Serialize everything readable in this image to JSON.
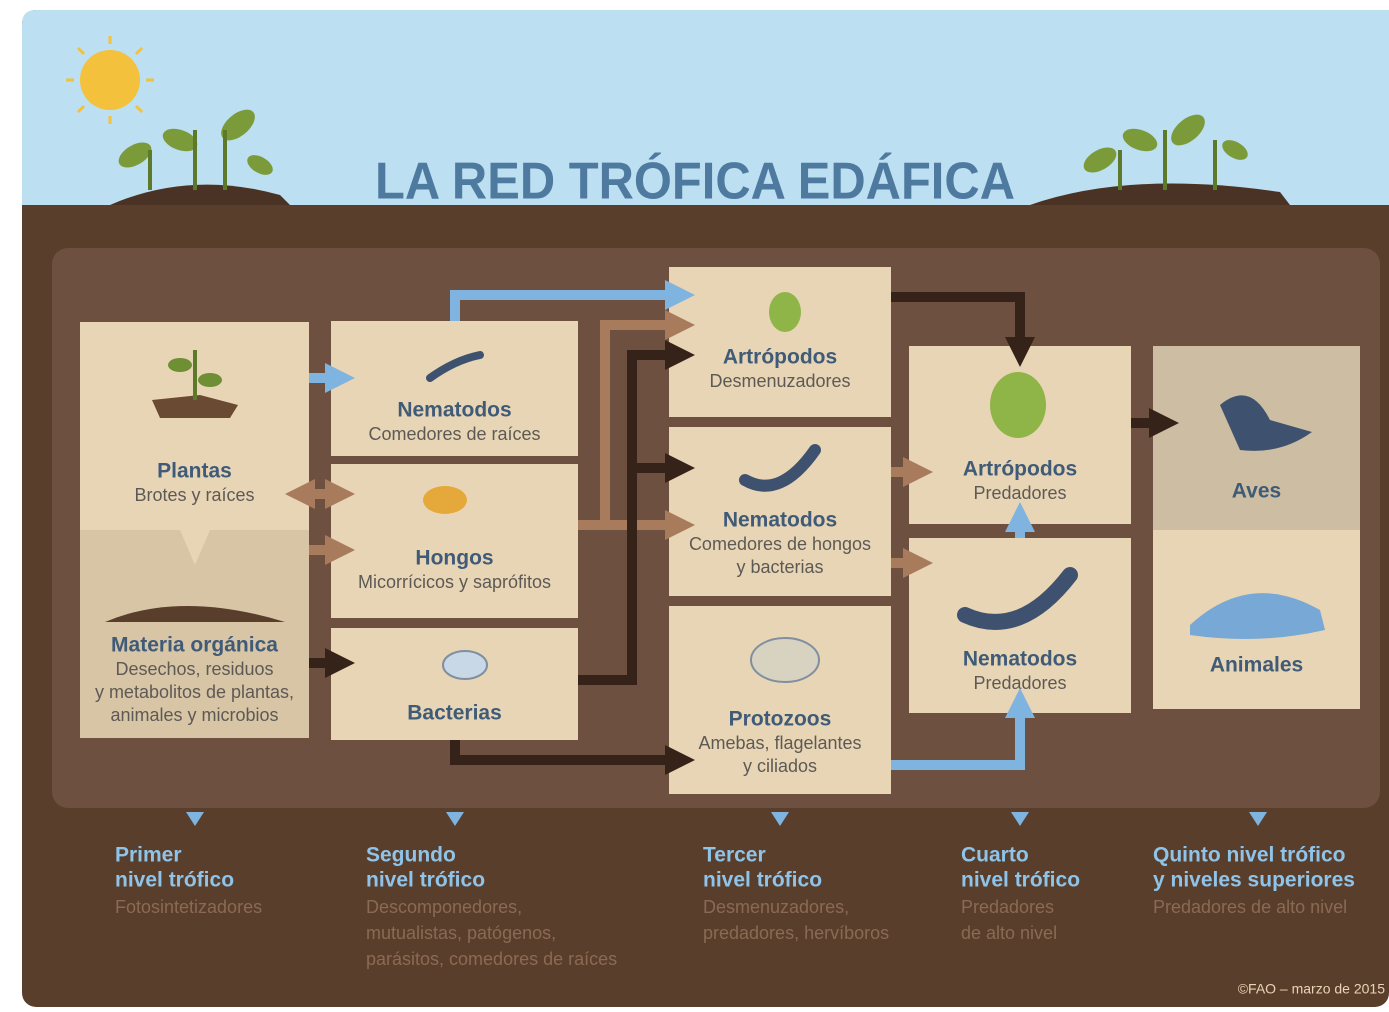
{
  "title": "LA RED TRÓFICA EDÁFICA",
  "nodes": [
    {
      "title": "Plantas",
      "lines": [
        "Brotes y raíces"
      ]
    },
    {
      "title": "Materia orgánica",
      "lines": [
        "Desechos, residuos",
        "y metabolitos de plantas,",
        "animales y microbios"
      ]
    },
    {
      "title": "Nematodos",
      "lines": [
        "Comedores de raíces"
      ]
    },
    {
      "title": "Hongos",
      "lines": [
        "Micorrícicos y saprófitos"
      ]
    },
    {
      "title": "Bacterias",
      "lines": []
    },
    {
      "title": "Artrópodos",
      "lines": [
        "Desmenuzadores"
      ]
    },
    {
      "title": "Nematodos",
      "lines": [
        "Comedores de hongos",
        "y bacterias"
      ]
    },
    {
      "title": "Protozoos",
      "lines": [
        "Amebas, flagelantes",
        "y ciliados"
      ]
    },
    {
      "title": "Artrópodos",
      "lines": [
        "Predadores"
      ]
    },
    {
      "title": "Nematodos",
      "lines": [
        "Predadores"
      ]
    },
    {
      "title": "Aves",
      "lines": []
    },
    {
      "title": "Animales",
      "lines": []
    }
  ],
  "levels": [
    {
      "title": [
        "Primer",
        "nivel trófico"
      ],
      "lines": [
        "Fotosintetizadores"
      ]
    },
    {
      "title": [
        "Segundo",
        "nivel trófico"
      ],
      "lines": [
        "Descomponedores,",
        "mutualistas, patógenos,",
        "parásitos, comedores de raíces"
      ]
    },
    {
      "title": [
        "Tercer",
        "nivel trófico"
      ],
      "lines": [
        "Desmenuzadores,",
        "predadores, hervíboros"
      ]
    },
    {
      "title": [
        "Cuarto",
        "nivel trófico"
      ],
      "lines": [
        "Predadores",
        "de alto nivel"
      ]
    },
    {
      "title": [
        "Quinto nivel trófico",
        "y niveles superiores"
      ],
      "lines": [
        "Predadores de alto nivel"
      ]
    }
  ],
  "credit": "©FAO – marzo de 2015"
}
